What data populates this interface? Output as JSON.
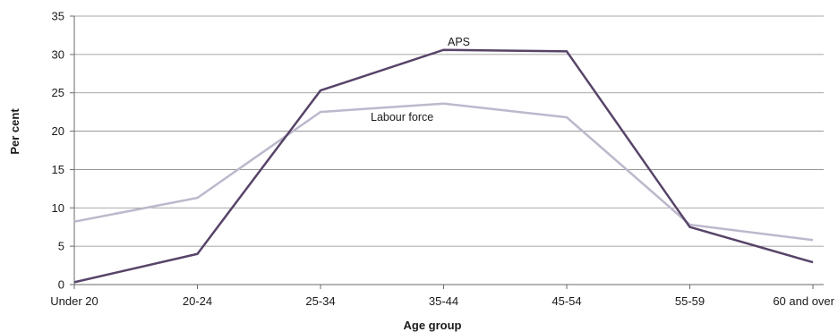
{
  "chart_data": {
    "type": "line",
    "title": "",
    "xlabel": "Age group",
    "ylabel": "Per cent",
    "categories": [
      "Under 20",
      "20-24",
      "25-34",
      "35-44",
      "45-54",
      "55-59",
      "60 and over"
    ],
    "ylim": [
      0,
      35
    ],
    "yticks": [
      0,
      5,
      10,
      15,
      20,
      25,
      30,
      35
    ],
    "grid": true,
    "legend": "none (series labelled directly on the lines)",
    "series": [
      {
        "name": "Labour force",
        "values": [
          8.2,
          11.3,
          22.5,
          23.6,
          21.8,
          7.8,
          5.8
        ],
        "color": "#bdb8cc"
      },
      {
        "name": "APS",
        "values": [
          0.3,
          4.0,
          25.3,
          30.6,
          30.4,
          7.5,
          2.9
        ],
        "color": "#574468"
      }
    ]
  },
  "colors": {
    "grid": "#8a8a8a",
    "axis": "#6a6a6a",
    "text": "#1a1a1a"
  }
}
